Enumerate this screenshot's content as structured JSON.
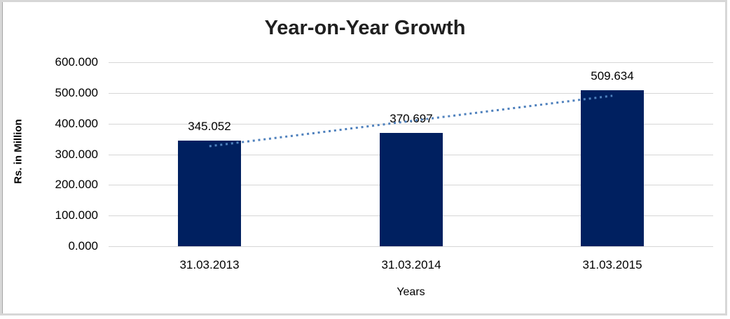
{
  "chart_data": {
    "type": "bar",
    "title": "Year-on-Year Growth",
    "xlabel": "Years",
    "ylabel": "Rs. in Million",
    "categories": [
      "31.03.2013",
      "31.03.2014",
      "31.03.2015"
    ],
    "values": [
      345.052,
      370.697,
      509.634
    ],
    "data_labels": [
      "345.052",
      "370.697",
      "509.634"
    ],
    "y_ticks": [
      "600.000",
      "500.000",
      "400.000",
      "300.000",
      "200.000",
      "100.000",
      "0.000"
    ],
    "ylim": [
      0,
      600
    ],
    "grid": "horizontal-only",
    "legend": "none",
    "bar_color": "#002060",
    "gridline_color": "#d6d6d6",
    "trendline": {
      "type": "linear",
      "style": "dotted",
      "color": "#4f81bd",
      "start_value": 326.2,
      "end_value": 490.8
    }
  }
}
